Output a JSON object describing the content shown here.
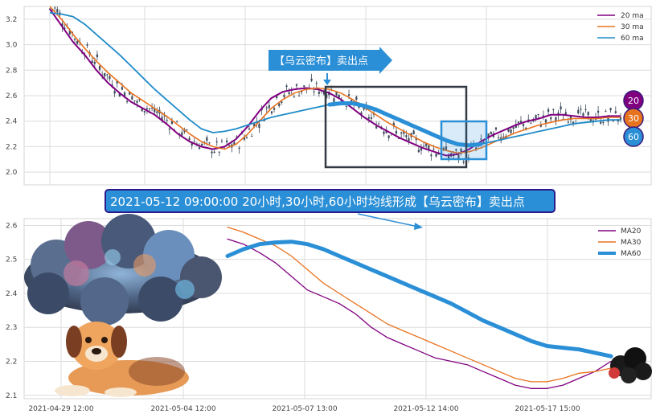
{
  "chart_data": [
    {
      "type": "candlestick",
      "title": "",
      "xlabel": "",
      "ylabel": "",
      "ylim": [
        1.9,
        3.3
      ],
      "yticks": [
        "2.0",
        "2.2",
        "2.4",
        "2.6",
        "2.8",
        "3.0",
        "3.2"
      ],
      "grid": true,
      "legend": {
        "position": "top-right",
        "entries": [
          "20 ma",
          "30 ma",
          "60 ma"
        ]
      },
      "series": [
        {
          "name": "20 ma",
          "color": "#800080",
          "values": [
            3.28,
            3.15,
            3.02,
            2.92,
            2.8,
            2.7,
            2.62,
            2.55,
            2.5,
            2.45,
            2.38,
            2.3,
            2.24,
            2.2,
            2.18,
            2.2,
            2.26,
            2.36,
            2.48,
            2.58,
            2.63,
            2.65,
            2.66,
            2.65,
            2.62,
            2.57,
            2.5,
            2.43,
            2.37,
            2.32,
            2.27,
            2.23,
            2.19,
            2.16,
            2.13,
            2.14,
            2.18,
            2.24,
            2.29,
            2.33,
            2.37,
            2.4,
            2.42,
            2.45,
            2.45,
            2.44,
            2.43,
            2.43,
            2.44,
            2.44
          ]
        },
        {
          "name": "30 ma",
          "color": "#e8731f",
          "values": [
            3.3,
            3.2,
            3.08,
            2.97,
            2.87,
            2.78,
            2.7,
            2.62,
            2.56,
            2.5,
            2.44,
            2.37,
            2.3,
            2.24,
            2.2,
            2.18,
            2.22,
            2.3,
            2.4,
            2.5,
            2.57,
            2.62,
            2.65,
            2.66,
            2.65,
            2.62,
            2.57,
            2.51,
            2.45,
            2.39,
            2.34,
            2.29,
            2.24,
            2.2,
            2.17,
            2.15,
            2.16,
            2.19,
            2.23,
            2.27,
            2.31,
            2.34,
            2.37,
            2.39,
            2.41,
            2.42,
            2.42,
            2.42,
            2.43,
            2.43
          ]
        },
        {
          "name": "60 ma",
          "color": "#1f8bc9",
          "values": [
            3.25,
            3.24,
            3.22,
            3.16,
            3.08,
            3.0,
            2.92,
            2.83,
            2.74,
            2.65,
            2.57,
            2.49,
            2.41,
            2.34,
            2.31,
            2.32,
            2.34,
            2.37,
            2.4,
            2.43,
            2.45,
            2.47,
            2.49,
            2.51,
            2.53,
            2.54,
            2.54,
            2.52,
            2.49,
            2.45,
            2.41,
            2.37,
            2.33,
            2.29,
            2.25,
            2.22,
            2.21,
            2.22,
            2.24,
            2.26,
            2.28,
            2.3,
            2.32,
            2.34,
            2.36,
            2.38,
            2.39,
            2.4,
            2.41,
            2.41
          ]
        }
      ],
      "badges": [
        "20",
        "30",
        "60"
      ],
      "annotation": "【乌云密布】卖出点"
    },
    {
      "type": "line",
      "title": "",
      "xlabel": "",
      "ylabel": "",
      "ylim": [
        2.09,
        2.62
      ],
      "yticks": [
        "2.1",
        "2.2",
        "2.3",
        "2.4",
        "2.5",
        "2.6"
      ],
      "x_tick_labels": [
        "2021-04-29 12:00",
        "2021-05-04 12:00",
        "2021-05-07 13:00",
        "2021-05-12 14:00",
        "2021-05-17 15:00"
      ],
      "grid": true,
      "legend": {
        "position": "top-right",
        "entries": [
          "MA20",
          "MA30",
          "MA60"
        ]
      },
      "series": [
        {
          "name": "MA20",
          "color": "#800080",
          "values": [
            2.56,
            2.545,
            2.52,
            2.49,
            2.45,
            2.41,
            2.39,
            2.37,
            2.34,
            2.3,
            2.27,
            2.25,
            2.23,
            2.21,
            2.2,
            2.19,
            2.17,
            2.15,
            2.13,
            2.12,
            2.12,
            2.13,
            2.15,
            2.17,
            2.2
          ]
        },
        {
          "name": "MA30",
          "color": "#e8731f",
          "values": [
            2.595,
            2.58,
            2.56,
            2.54,
            2.51,
            2.47,
            2.43,
            2.4,
            2.37,
            2.34,
            2.31,
            2.29,
            2.27,
            2.25,
            2.23,
            2.21,
            2.19,
            2.17,
            2.15,
            2.14,
            2.14,
            2.15,
            2.165,
            2.17,
            2.18
          ]
        },
        {
          "name": "MA60",
          "color": "#2a8fd6",
          "values": [
            2.51,
            2.53,
            2.545,
            2.55,
            2.552,
            2.545,
            2.53,
            2.51,
            2.49,
            2.47,
            2.45,
            2.43,
            2.41,
            2.39,
            2.37,
            2.345,
            2.32,
            2.3,
            2.28,
            2.26,
            2.245,
            2.24,
            2.235,
            2.225,
            2.215
          ]
        }
      ]
    }
  ],
  "top_callout": "【乌云密布】卖出点",
  "banner": "2021-05-12 09:00:00 20小时,30小时,60小时均线形成【乌云密布】卖出点",
  "colors": {
    "grid_bg": "#ffffff",
    "grid_line": "#dcdcdc",
    "candle": "#3c4a5c",
    "banner_bg": "#2a8fd6",
    "banner_border": "#2a1a8c",
    "callout_bg": "#2a8fd6",
    "box_dark": "#333a44",
    "box_blue": "#2a8fd6"
  },
  "icons": [
    "storm-cloud-illustration",
    "dog-illustration",
    "dark-cloud-icon"
  ]
}
